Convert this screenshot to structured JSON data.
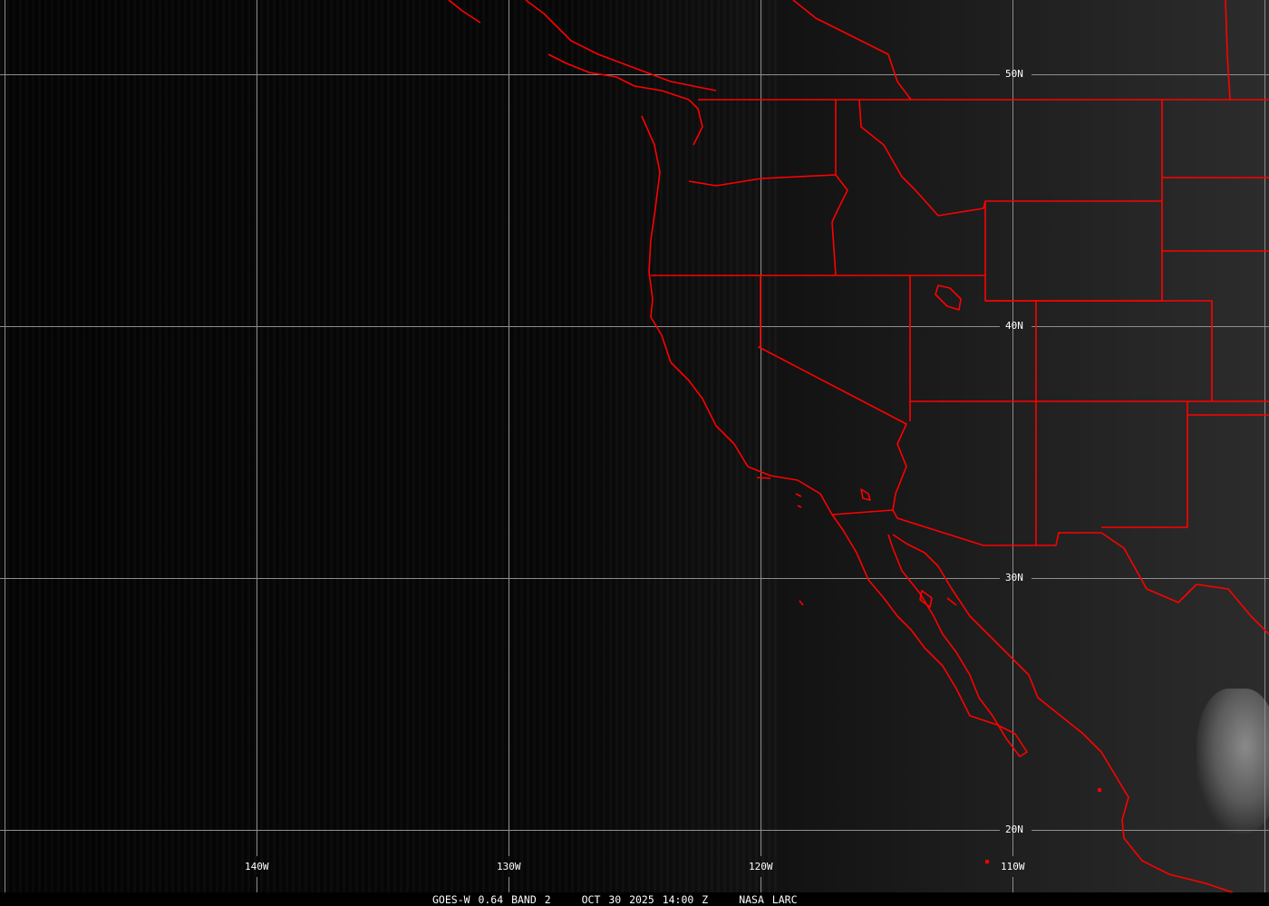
{
  "map": {
    "type": "satellite-image",
    "colors": {
      "borders": "#ff0000",
      "grid": "#9a9a9a",
      "text": "#ffffff",
      "background": "#000000"
    },
    "lat_labels": [
      "50N",
      "40N",
      "30N",
      "20N"
    ],
    "lon_labels": [
      "140W",
      "130W",
      "120W",
      "110W"
    ]
  },
  "caption": {
    "product": "GOES-W 0.64 BAND 2",
    "datetime": "OCT 30 2025 14:00 Z",
    "source": "NASA LARC"
  }
}
